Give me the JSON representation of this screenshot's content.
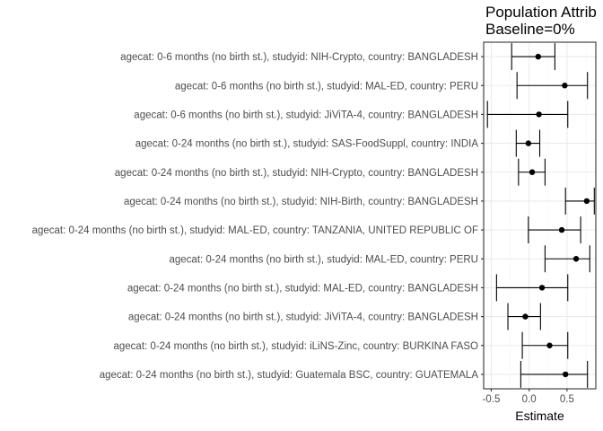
{
  "chart_data": {
    "type": "forest",
    "title": "Population Attrib",
    "subtitle": "Baseline=0%",
    "xlabel": "Estimate",
    "ylabel": "",
    "xlim": [
      -0.6,
      0.88
    ],
    "xticks": [
      -0.5,
      0.0,
      0.5
    ],
    "xtick_labels": [
      "-0.5",
      "0.0",
      "0.5"
    ],
    "grid": true,
    "rows": [
      {
        "label": "agecat: 0-6 months (no birth st.), studyid: NIH-Crypto, country: BANGLADESH",
        "estimate": 0.12,
        "lower": -0.23,
        "upper": 0.34
      },
      {
        "label": "agecat: 0-6 months (no birth st.), studyid: MAL-ED, country: PERU",
        "estimate": 0.47,
        "lower": -0.16,
        "upper": 0.77
      },
      {
        "label": "agecat: 0-6 months (no birth st.), studyid: JiViTA-4, country: BANGLADESH",
        "estimate": 0.13,
        "lower": -0.55,
        "upper": 0.51
      },
      {
        "label": "agecat: 0-24 months (no birth st.), studyid: SAS-FoodSuppl, country: INDIA",
        "estimate": -0.01,
        "lower": -0.17,
        "upper": 0.14
      },
      {
        "label": "agecat: 0-24 months (no birth st.), studyid: NIH-Crypto, country: BANGLADESH",
        "estimate": 0.04,
        "lower": -0.14,
        "upper": 0.21
      },
      {
        "label": "agecat: 0-24 months (no birth st.), studyid: NIH-Birth, country: BANGLADESH",
        "estimate": 0.76,
        "lower": 0.48,
        "upper": 0.86
      },
      {
        "label": "agecat: 0-24 months (no birth st.), studyid: MAL-ED, country: TANZANIA, UNITED REPUBLIC OF",
        "estimate": 0.43,
        "lower": -0.01,
        "upper": 0.68
      },
      {
        "label": "agecat: 0-24 months (no birth st.), studyid: MAL-ED, country: PERU",
        "estimate": 0.62,
        "lower": 0.21,
        "upper": 0.8
      },
      {
        "label": "agecat: 0-24 months (no birth st.), studyid: MAL-ED, country: BANGLADESH",
        "estimate": 0.17,
        "lower": -0.43,
        "upper": 0.51
      },
      {
        "label": "agecat: 0-24 months (no birth st.), studyid: JiViTA-4, country: BANGLADESH",
        "estimate": -0.05,
        "lower": -0.28,
        "upper": 0.15
      },
      {
        "label": "agecat: 0-24 months (no birth st.), studyid: iLiNS-Zinc, country: BURKINA FASO",
        "estimate": 0.27,
        "lower": -0.09,
        "upper": 0.51
      },
      {
        "label": "agecat: 0-24 months (no birth st.), studyid: Guatemala BSC, country: GUATEMALA",
        "estimate": 0.48,
        "lower": -0.11,
        "upper": 0.77
      }
    ],
    "colors": {
      "panel_border": "#333333",
      "grid_major": "#ebebeb",
      "grid_minor": "#f5f5f5",
      "point": "#000000",
      "tick_text": "#4d4d4d"
    }
  }
}
